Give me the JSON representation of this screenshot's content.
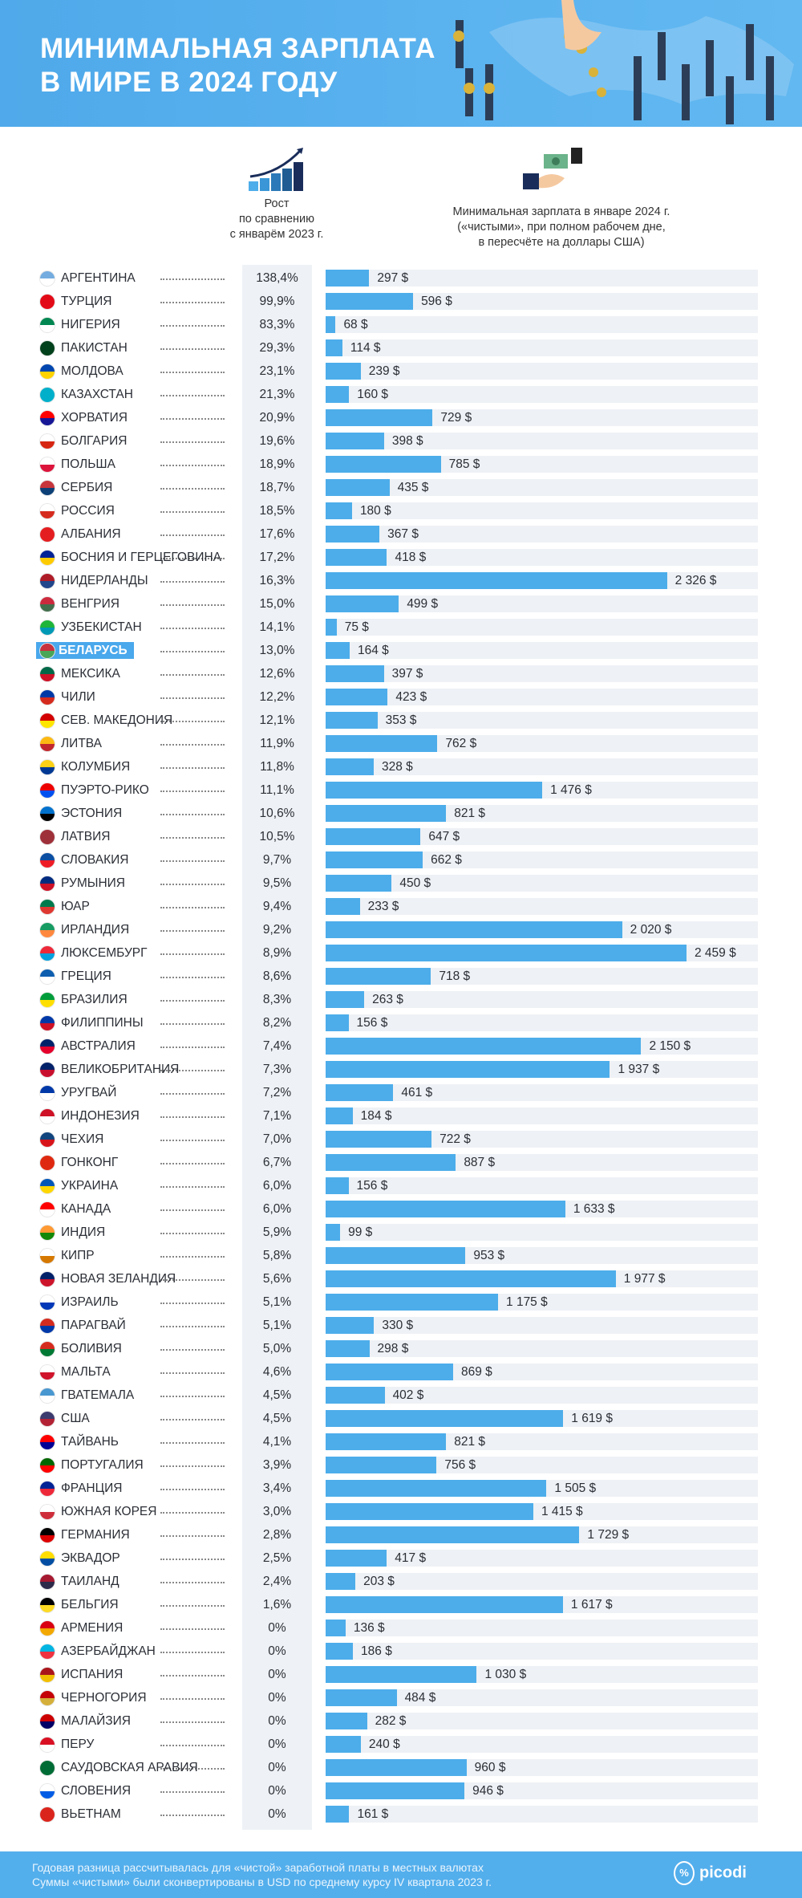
{
  "header": {
    "title_line1": "МИНИМАЛЬНАЯ ЗАРПЛАТА",
    "title_line2": "В МИРЕ В 2024 ГОДУ",
    "background": "#52aeec"
  },
  "columns": {
    "growth": [
      "Рост",
      "по сравнению",
      "с январём 2023 г."
    ],
    "wage": [
      "Минимальная зарплата в январе 2024 г.",
      "(«чистыми», при полном рабочем дне,",
      "в пересчёте на доллары США)"
    ],
    "growth_icon": "rising-bar-chart-icon",
    "wage_icon": "money-exchange-hands-icon"
  },
  "chart_data": {
    "type": "bar",
    "orientation": "horizontal",
    "bar_color": "#4dadea",
    "highlight": "БЕЛАРУСЬ",
    "categories": [
      "АРГЕНТИНА",
      "ТУРЦИЯ",
      "НИГЕРИЯ",
      "ПАКИСТАН",
      "МОЛДОВА",
      "КАЗАХСТАН",
      "ХОРВАТИЯ",
      "БОЛГАРИЯ",
      "ПОЛЬША",
      "СЕРБИЯ",
      "РОССИЯ",
      "АЛБАНИЯ",
      "БОСНИЯ И ГЕРЦЕГОВИНА",
      "НИДЕРЛАНДЫ",
      "ВЕНГРИЯ",
      "УЗБЕКИСТАН",
      "БЕЛАРУСЬ",
      "МЕКСИКА",
      "ЧИЛИ",
      "СЕВ. МАКЕДОНИЯ",
      "ЛИТВА",
      "КОЛУМБИЯ",
      "ПУЭРТО-РИКО",
      "ЭСТОНИЯ",
      "ЛАТВИЯ",
      "СЛОВАКИЯ",
      "РУМЫНИЯ",
      "ЮАР",
      "ИРЛАНДИЯ",
      "ЛЮКСЕМБУРГ",
      "ГРЕЦИЯ",
      "БРАЗИЛИЯ",
      "ФИЛИППИНЫ",
      "АВСТРАЛИЯ",
      "ВЕЛИКОБРИТАНИЯ",
      "УРУГВАЙ",
      "ИНДОНЕЗИЯ",
      "ЧЕХИЯ",
      "ГОНКОНГ",
      "УКРАИНА",
      "КАНАДА",
      "ИНДИЯ",
      "КИПР",
      "НОВАЯ ЗЕЛАНДИЯ",
      "ИЗРАИЛЬ",
      "ПАРАГВАЙ",
      "БОЛИВИЯ",
      "МАЛЬТА",
      "ГВАТЕМАЛА",
      "США",
      "ТАЙВАНЬ",
      "ПОРТУГАЛИЯ",
      "ФРАНЦИЯ",
      "ЮЖНАЯ КОРЕЯ",
      "ГЕРМАНИЯ",
      "ЭКВАДОР",
      "ТАИЛАНД",
      "БЕЛЬГИЯ",
      "АРМЕНИЯ",
      "АЗЕРБАЙДЖАН",
      "ИСПАНИЯ",
      "ЧЕРНОГОРИЯ",
      "МАЛАЙЗИЯ",
      "ПЕРУ",
      "САУДОВСКАЯ АРАВИЯ",
      "СЛОВЕНИЯ",
      "ВЬЕТНАМ"
    ],
    "growth_labels": [
      "138,4%",
      "99,9%",
      "83,3%",
      "29,3%",
      "23,1%",
      "21,3%",
      "20,9%",
      "19,6%",
      "18,9%",
      "18,7%",
      "18,5%",
      "17,6%",
      "17,2%",
      "16,3%",
      "15,0%",
      "14,1%",
      "13,0%",
      "12,6%",
      "12,2%",
      "12,1%",
      "11,9%",
      "11,8%",
      "11,1%",
      "10,6%",
      "10,5%",
      "9,7%",
      "9,5%",
      "9,4%",
      "9,2%",
      "8,9%",
      "8,6%",
      "8,3%",
      "8,2%",
      "7,4%",
      "7,3%",
      "7,2%",
      "7,1%",
      "7,0%",
      "6,7%",
      "6,0%",
      "6,0%",
      "5,9%",
      "5,8%",
      "5,6%",
      "5,1%",
      "5,1%",
      "5,0%",
      "4,6%",
      "4,5%",
      "4,5%",
      "4,1%",
      "3,9%",
      "3,4%",
      "3,0%",
      "2,8%",
      "2,5%",
      "2,4%",
      "1,6%",
      "0%",
      "0%",
      "0%",
      "0%",
      "0%",
      "0%",
      "0%",
      "0%",
      "0%"
    ],
    "values": [
      297,
      596,
      68,
      114,
      239,
      160,
      729,
      398,
      785,
      435,
      180,
      367,
      418,
      2326,
      499,
      75,
      164,
      397,
      423,
      353,
      762,
      328,
      1476,
      821,
      647,
      662,
      450,
      233,
      2020,
      2459,
      718,
      263,
      156,
      2150,
      1937,
      461,
      184,
      722,
      887,
      156,
      1633,
      99,
      953,
      1977,
      1175,
      330,
      298,
      869,
      402,
      1619,
      821,
      756,
      1505,
      1415,
      1729,
      417,
      203,
      1617,
      136,
      186,
      1030,
      484,
      282,
      240,
      960,
      946,
      161
    ],
    "value_labels": [
      "297 $",
      "596 $",
      "68 $",
      "114 $",
      "239 $",
      "160 $",
      "729 $",
      "398 $",
      "785 $",
      "435 $",
      "180 $",
      "367 $",
      "418 $",
      "2 326 $",
      "499 $",
      "75 $",
      "164 $",
      "397 $",
      "423 $",
      "353 $",
      "762 $",
      "328 $",
      "1 476 $",
      "821 $",
      "647 $",
      "662 $",
      "450 $",
      "233 $",
      "2 020 $",
      "2 459 $",
      "718 $",
      "263 $",
      "156 $",
      "2 150 $",
      "1 937 $",
      "461 $",
      "184 $",
      "722 $",
      "887 $",
      "156 $",
      "1 633 $",
      "99 $",
      "953 $",
      "1 977 $",
      "1 175 $",
      "330 $",
      "298 $",
      "869 $",
      "402 $",
      "1 619 $",
      "821 $",
      "756 $",
      "1 505 $",
      "1 415 $",
      "1 729 $",
      "417 $",
      "203 $",
      "1 617 $",
      "136 $",
      "186 $",
      "1 030 $",
      "484 $",
      "282 $",
      "240 $",
      "960 $",
      "946 $",
      "161 $"
    ],
    "flag_colors": [
      [
        "#74acdf",
        "#ffffff"
      ],
      [
        "#e30a17",
        "#e30a17"
      ],
      [
        "#008751",
        "#ffffff"
      ],
      [
        "#01411c",
        "#01411c"
      ],
      [
        "#0046ae",
        "#ffd200"
      ],
      [
        "#00afca",
        "#00afca"
      ],
      [
        "#ff0000",
        "#171796"
      ],
      [
        "#ffffff",
        "#d62612"
      ],
      [
        "#ffffff",
        "#dc143c"
      ],
      [
        "#c6363c",
        "#0c4076"
      ],
      [
        "#ffffff",
        "#d52b1e"
      ],
      [
        "#e41e20",
        "#e41e20"
      ],
      [
        "#002395",
        "#fecb00"
      ],
      [
        "#ae1c28",
        "#21468b"
      ],
      [
        "#cd2a3e",
        "#436f4d"
      ],
      [
        "#1eb53a",
        "#0099b5"
      ],
      [
        "#c8313e",
        "#4aa657"
      ],
      [
        "#006847",
        "#ce1126"
      ],
      [
        "#0039a6",
        "#d52b1e"
      ],
      [
        "#d20000",
        "#ffe600"
      ],
      [
        "#fdb913",
        "#c1272d"
      ],
      [
        "#fcd116",
        "#003893"
      ],
      [
        "#ed0000",
        "#0050f0"
      ],
      [
        "#0072ce",
        "#000000"
      ],
      [
        "#9e3039",
        "#9e3039"
      ],
      [
        "#0b4ea2",
        "#ee1c25"
      ],
      [
        "#002b7f",
        "#ce1126"
      ],
      [
        "#007a4d",
        "#de3831"
      ],
      [
        "#169b62",
        "#ff883e"
      ],
      [
        "#ed2939",
        "#00a1de"
      ],
      [
        "#0d5eaf",
        "#ffffff"
      ],
      [
        "#009c3b",
        "#ffdf00"
      ],
      [
        "#0038a8",
        "#ce1126"
      ],
      [
        "#012169",
        "#e4002b"
      ],
      [
        "#012169",
        "#c8102e"
      ],
      [
        "#0038a8",
        "#ffffff"
      ],
      [
        "#ce1126",
        "#ffffff"
      ],
      [
        "#11457e",
        "#d7141a"
      ],
      [
        "#de2910",
        "#de2910"
      ],
      [
        "#0057b7",
        "#ffd700"
      ],
      [
        "#ff0000",
        "#ffffff"
      ],
      [
        "#ff9933",
        "#138808"
      ],
      [
        "#ffffff",
        "#d57800"
      ],
      [
        "#012169",
        "#cc142b"
      ],
      [
        "#ffffff",
        "#0038b8"
      ],
      [
        "#d52b1e",
        "#0038a8"
      ],
      [
        "#d52b1e",
        "#007934"
      ],
      [
        "#ffffff",
        "#cf142b"
      ],
      [
        "#4997d0",
        "#ffffff"
      ],
      [
        "#3c3b6e",
        "#b22234"
      ],
      [
        "#fe0000",
        "#000095"
      ],
      [
        "#006600",
        "#ff0000"
      ],
      [
        "#002395",
        "#ed2939"
      ],
      [
        "#ffffff",
        "#cd2e3a"
      ],
      [
        "#000000",
        "#dd0000"
      ],
      [
        "#ffdd00",
        "#034ea2"
      ],
      [
        "#a51931",
        "#2d2a4a"
      ],
      [
        "#000000",
        "#fdda24"
      ],
      [
        "#d90012",
        "#f2a800"
      ],
      [
        "#00b5e2",
        "#ef3340"
      ],
      [
        "#aa151b",
        "#f1bf00"
      ],
      [
        "#c40308",
        "#d4af3a"
      ],
      [
        "#cc0001",
        "#010066"
      ],
      [
        "#d91023",
        "#ffffff"
      ],
      [
        "#006c35",
        "#006c35"
      ],
      [
        "#ffffff",
        "#005ce5"
      ],
      [
        "#da251d",
        "#da251d"
      ]
    ]
  },
  "footer": {
    "note_line1": "Годовая разница рассчитывалась для «чистой» заработной платы в местных валютах",
    "note_line2": "Суммы «чистыми» были сконвертированы в USD по среднему курсу IV квартала 2023 г.",
    "brand": "picodi",
    "brand_icon": "percent-tag-hand-icon"
  }
}
